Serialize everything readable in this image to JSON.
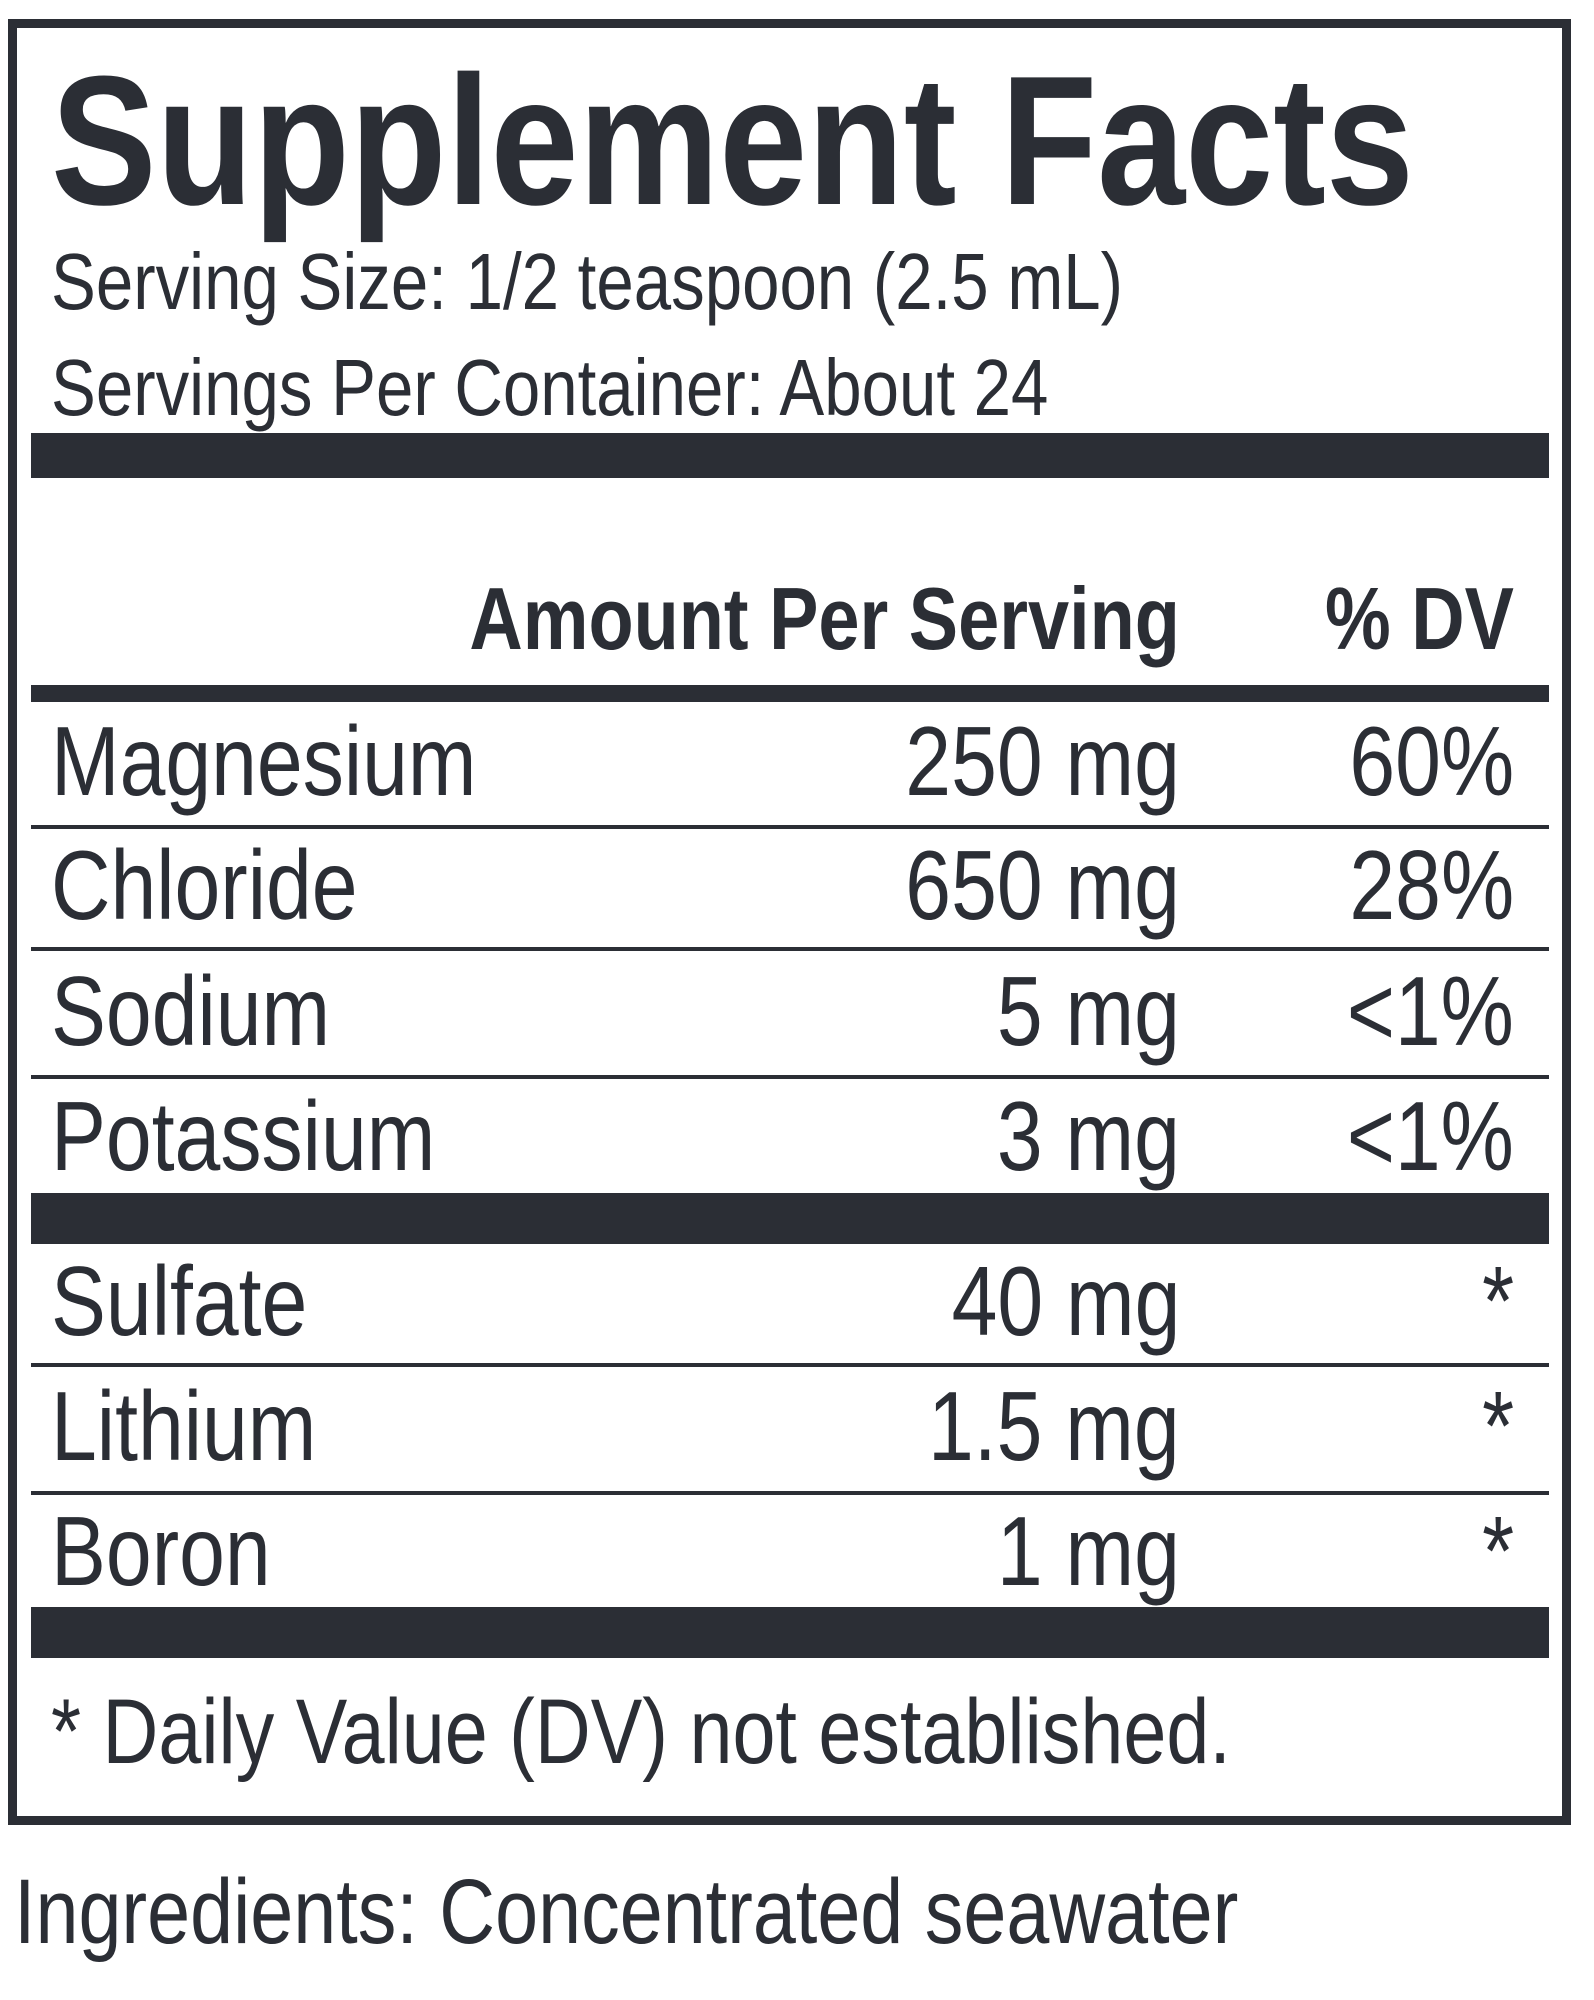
{
  "label": {
    "title": "Supplement Facts",
    "serving_size": "Serving Size: 1/2 teaspoon (2.5 mL)",
    "servings_per_container": "Servings Per Container: About 24",
    "header": {
      "amount": "Amount Per Serving",
      "dv": "% DV"
    },
    "rows": [
      {
        "name": "Magnesium",
        "amount": "250 mg",
        "dv": "60%"
      },
      {
        "name": "Chloride",
        "amount": "650 mg",
        "dv": "28%"
      },
      {
        "name": "Sodium",
        "amount": "5 mg",
        "dv": "<1%"
      },
      {
        "name": "Potassium",
        "amount": "3 mg",
        "dv": "<1%"
      },
      {
        "name": "Sulfate",
        "amount": "40 mg",
        "dv": "*"
      },
      {
        "name": "Lithium",
        "amount": "1.5 mg",
        "dv": "*"
      },
      {
        "name": "Boron",
        "amount": "1 mg",
        "dv": "*"
      }
    ],
    "footnote": "* Daily Value (DV) not established."
  },
  "ingredients": "Ingredients: Concentrated seawater",
  "colors": {
    "ink": "#2b2e35",
    "background": "#ffffff"
  }
}
